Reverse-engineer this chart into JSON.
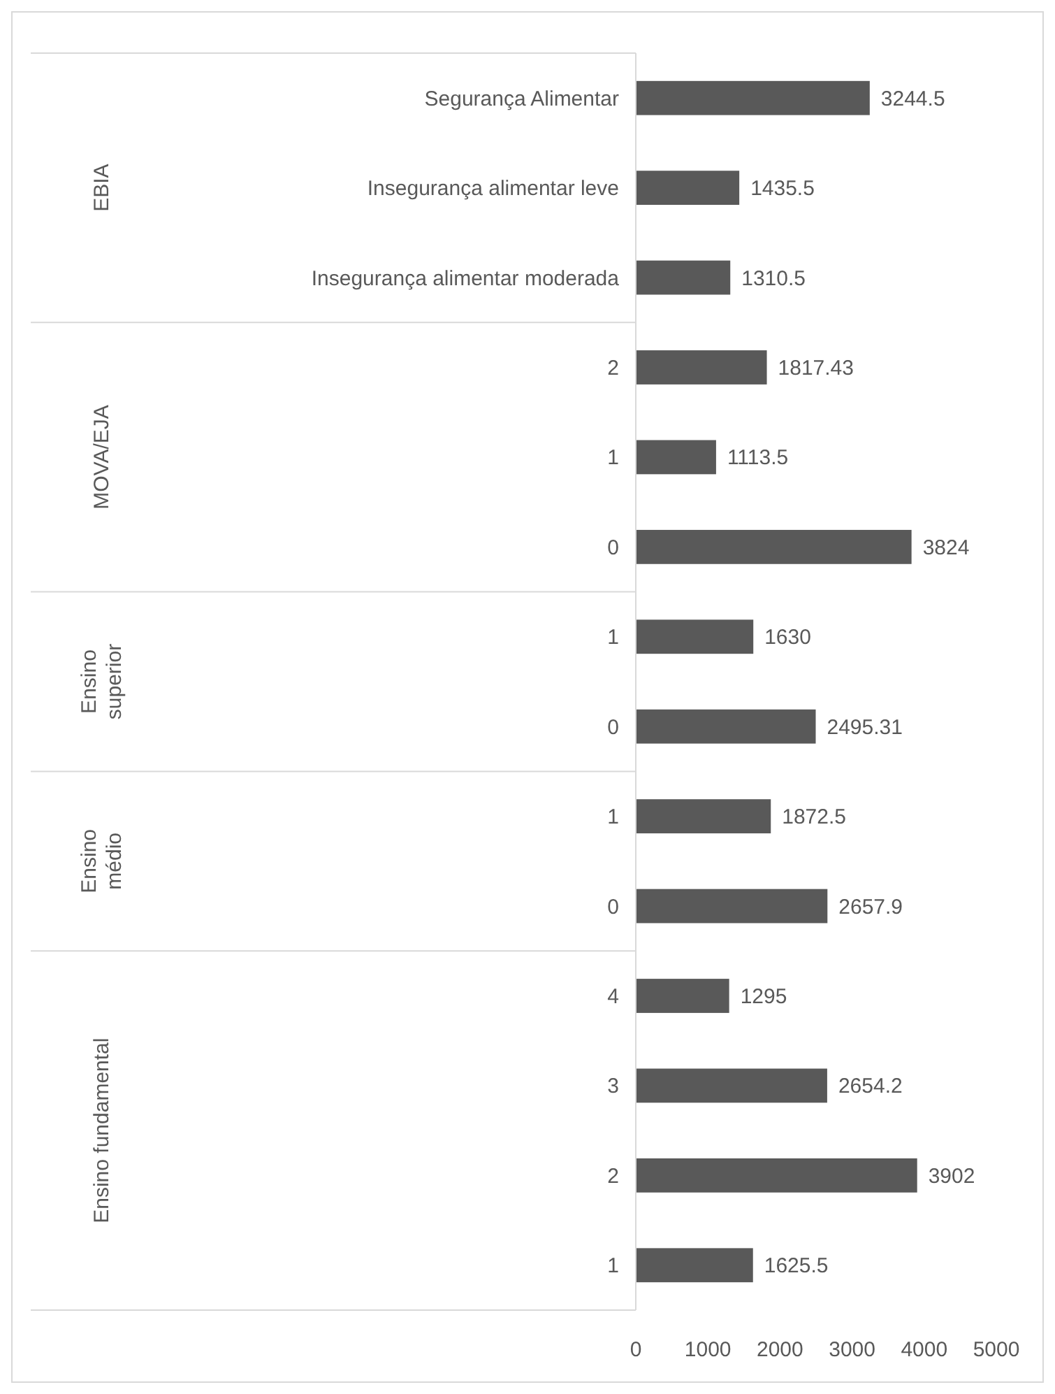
{
  "chart_data": {
    "type": "bar",
    "orientation": "horizontal",
    "categories": [
      "Segurança Alimentar",
      "Insegurança alimentar leve",
      "Insegurança alimentar moderada",
      "2",
      "1",
      "0",
      "1",
      "0",
      "1",
      "0",
      "4",
      "3",
      "2",
      "1"
    ],
    "values": [
      3244.5,
      1435.5,
      1310.5,
      1817.43,
      1113.5,
      3824,
      1630,
      2495.31,
      1872.5,
      2657.9,
      1295,
      2654.2,
      3902,
      1625.5
    ],
    "color": "#595959",
    "xlim": [
      0,
      5000
    ],
    "xticks": [
      0,
      1000,
      2000,
      3000,
      4000,
      5000
    ],
    "data_labels": true,
    "grid": false,
    "annotations": [
      "EBIA",
      "MOVA/EJA",
      "Ensino superior",
      "Ensino médio",
      "Ensino fundamental"
    ]
  }
}
